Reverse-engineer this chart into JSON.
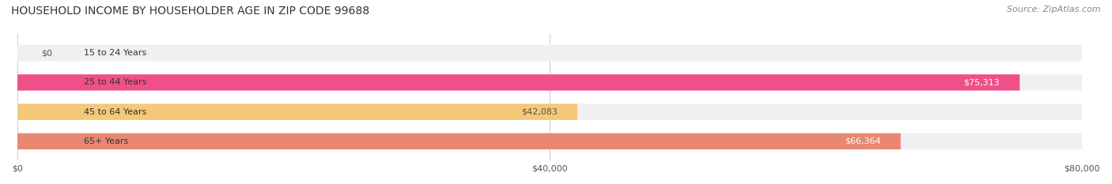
{
  "title": "HOUSEHOLD INCOME BY HOUSEHOLDER AGE IN ZIP CODE 99688",
  "source": "Source: ZipAtlas.com",
  "categories": [
    "15 to 24 Years",
    "25 to 44 Years",
    "45 to 64 Years",
    "65+ Years"
  ],
  "values": [
    0,
    75313,
    42083,
    66364
  ],
  "value_labels": [
    "$0",
    "$75,313",
    "$42,083",
    "$66,364"
  ],
  "bar_colors": [
    "#a8a8d8",
    "#f0508a",
    "#f5c878",
    "#e88870"
  ],
  "bar_bg_color": "#f0f0f0",
  "label_colors": [
    "#555555",
    "#ffffff",
    "#555555",
    "#ffffff"
  ],
  "xlim": [
    0,
    80000
  ],
  "xticks": [
    0,
    40000,
    80000
  ],
  "xticklabels": [
    "$0",
    "$40,000",
    "$80,000"
  ],
  "bar_height": 0.55,
  "figsize": [
    14.06,
    2.33
  ],
  "dpi": 100,
  "background_color": "#ffffff",
  "title_fontsize": 10,
  "source_fontsize": 8,
  "label_fontsize": 8,
  "tick_fontsize": 8,
  "category_fontsize": 8
}
